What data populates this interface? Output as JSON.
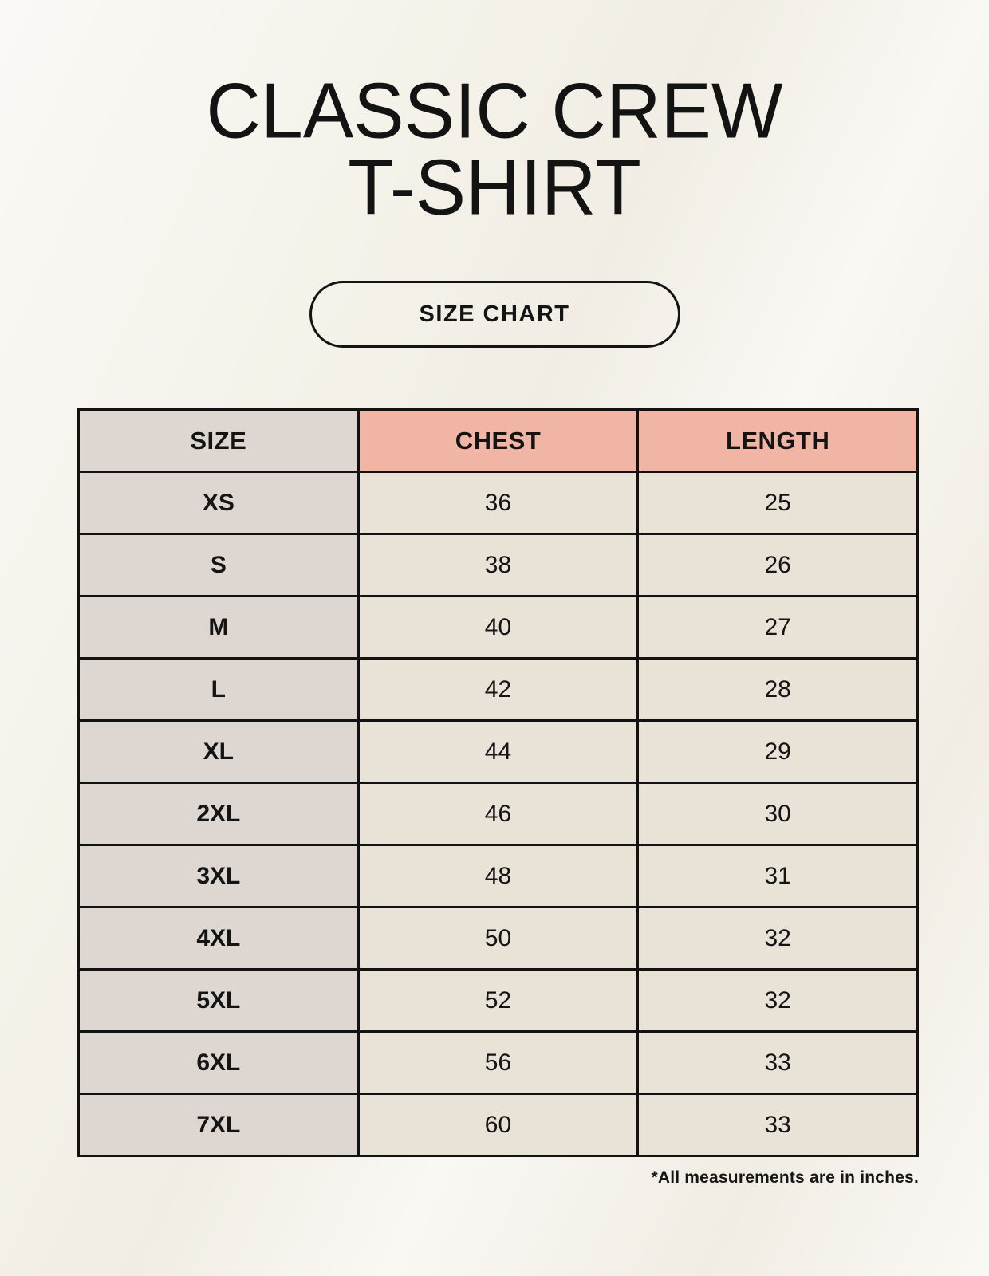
{
  "page": {
    "title_line1": "CLASSIC CREW",
    "title_line2": "T-SHIRT"
  },
  "size_chart_button": {
    "label": "SIZE CHART"
  },
  "table": {
    "headers": [
      "SIZE",
      "CHEST",
      "LENGTH"
    ],
    "rows": [
      {
        "size": "XS",
        "chest": "36",
        "length": "25"
      },
      {
        "size": "S",
        "chest": "38",
        "length": "26"
      },
      {
        "size": "M",
        "chest": "40",
        "length": "27"
      },
      {
        "size": "L",
        "chest": "42",
        "length": "28"
      },
      {
        "size": "XL",
        "chest": "44",
        "length": "29"
      },
      {
        "size": "2XL",
        "chest": "46",
        "length": "30"
      },
      {
        "size": "3XL",
        "chest": "48",
        "length": "31"
      },
      {
        "size": "4XL",
        "chest": "50",
        "length": "32"
      },
      {
        "size": "5XL",
        "chest": "52",
        "length": "32"
      },
      {
        "size": "6XL",
        "chest": "56",
        "length": "33"
      },
      {
        "size": "7XL",
        "chest": "60",
        "length": "33"
      }
    ]
  },
  "footnote": "*All measurements are in inches.",
  "colors": {
    "accent": "#f0b5a4",
    "size_column": "#ddd6d1",
    "cell": "#e9e2d7",
    "border": "#121212",
    "background": "#f5f2ea"
  }
}
